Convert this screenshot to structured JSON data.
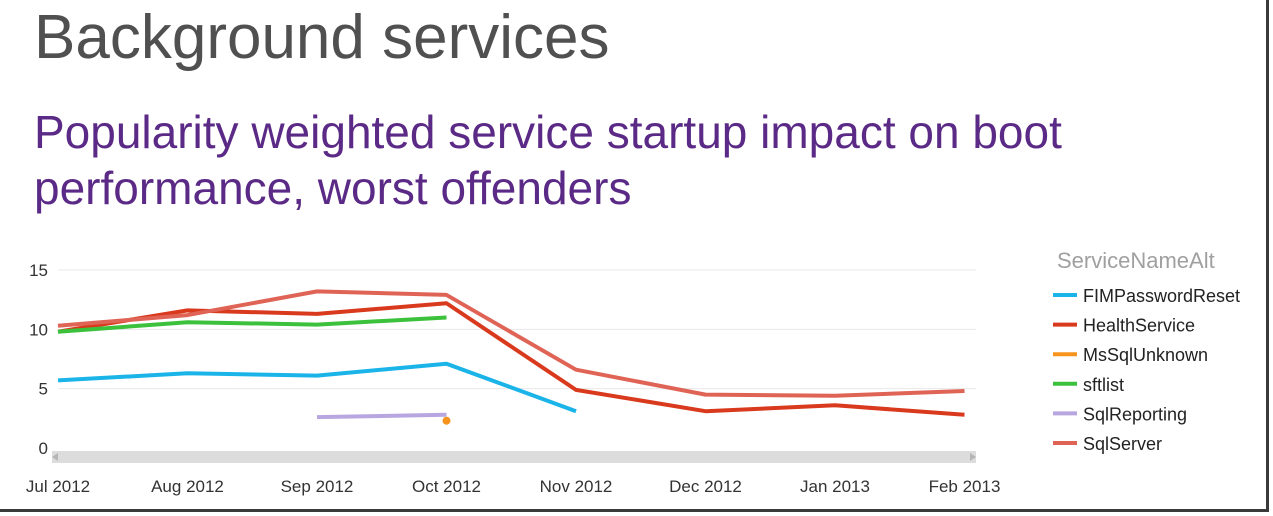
{
  "header": {
    "title": "Background services",
    "subtitle": "Popularity weighted service startup impact on boot performance, worst offenders"
  },
  "chart_data": {
    "type": "line",
    "title": "Popularity weighted service startup impact on boot performance, worst offenders",
    "xlabel": "",
    "ylabel": "",
    "categories": [
      "Jul 2012",
      "Aug 2012",
      "Sep 2012",
      "Oct 2012",
      "Nov 2012",
      "Dec 2012",
      "Jan 2013",
      "Feb 2013"
    ],
    "yticks": [
      0,
      5,
      10,
      15
    ],
    "ylim": [
      0,
      15
    ],
    "grid": true,
    "legend_title": "ServiceNameAlt",
    "legend_position": "right",
    "series": [
      {
        "name": "FIMPasswordReset",
        "color": "#1ab4e8",
        "values": [
          5.7,
          6.3,
          6.1,
          7.1,
          3.1,
          null,
          null,
          null
        ]
      },
      {
        "name": "HealthService",
        "color": "#d9391c",
        "values": [
          9.8,
          11.6,
          11.3,
          12.2,
          4.9,
          3.1,
          3.6,
          2.8
        ]
      },
      {
        "name": "MsSqlUnknown",
        "color": "#f7941d",
        "values": [
          null,
          null,
          null,
          2.3,
          null,
          null,
          null,
          null
        ]
      },
      {
        "name": "sftlist",
        "color": "#3cc13c",
        "values": [
          9.8,
          10.6,
          10.4,
          11.0,
          null,
          null,
          null,
          null
        ]
      },
      {
        "name": "SqlReporting",
        "color": "#b7a6e0",
        "values": [
          null,
          null,
          2.6,
          2.8,
          null,
          null,
          null,
          null
        ]
      },
      {
        "name": "SqlServer",
        "color": "#e06456",
        "values": [
          10.3,
          11.2,
          13.2,
          12.9,
          6.6,
          4.5,
          4.4,
          4.8
        ]
      }
    ]
  }
}
